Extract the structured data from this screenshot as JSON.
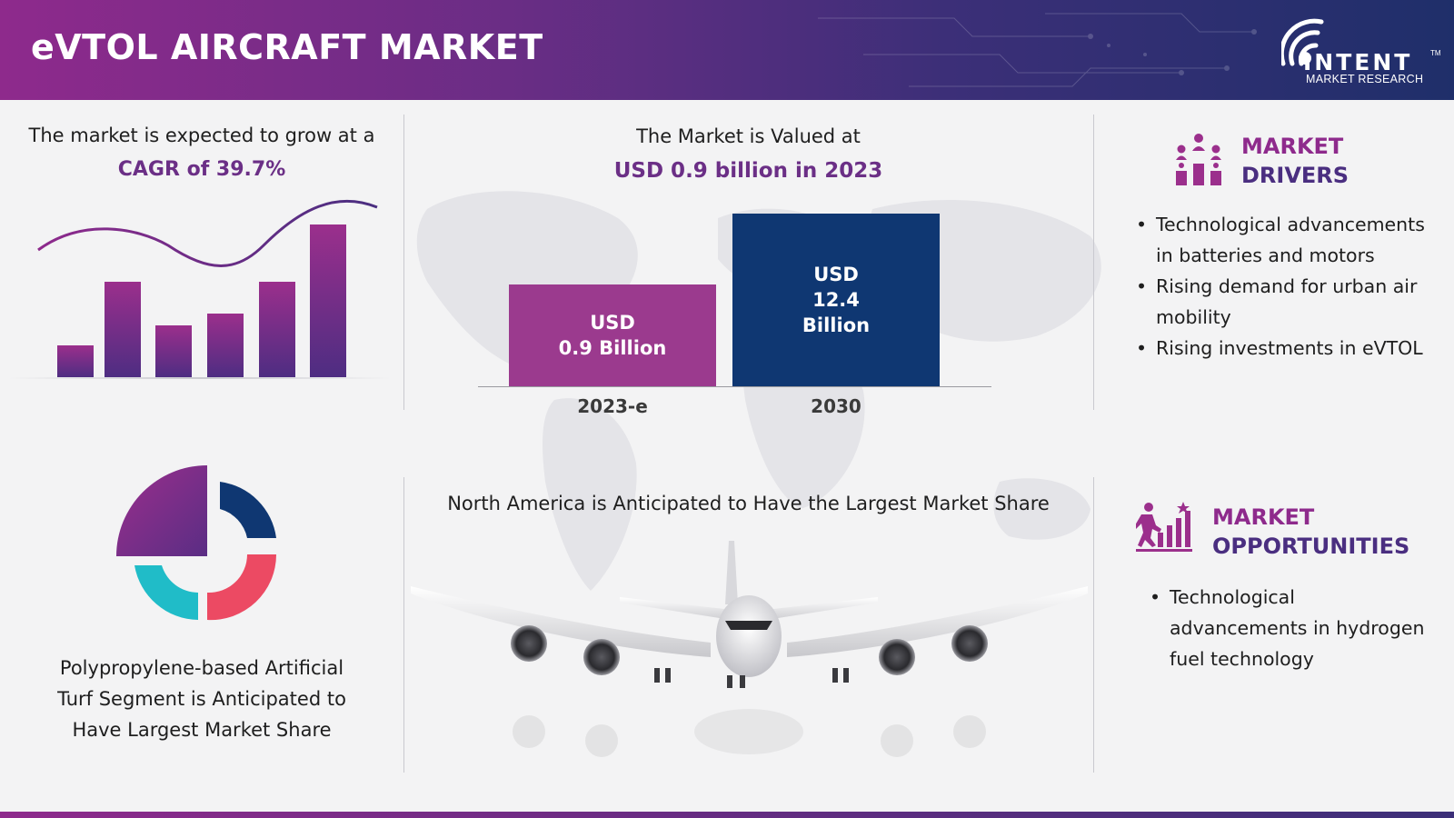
{
  "header": {
    "title": "eVTOL AIRCRAFT MARKET",
    "logo_name": "INTENT",
    "logo_tm": "TM",
    "logo_sub": "MARKET RESEARCH"
  },
  "cagr": {
    "text": "The market is expected to grow at a",
    "value": "CAGR of 39.7%"
  },
  "valuation": {
    "text": "The Market is Valued at",
    "value": "USD 0.9 billion in 2023"
  },
  "chart_data": {
    "type": "bar",
    "categories": [
      "2023-e",
      "2030"
    ],
    "values": [
      0.9,
      12.4
    ],
    "unit": "USD Billion",
    "bar_labels": [
      [
        "USD",
        "0.9 Billion"
      ],
      [
        "USD",
        "12.4",
        "Billion"
      ]
    ],
    "colors": [
      "#9b3a8e",
      "#0f3772"
    ],
    "ylim": [
      0,
      12.4
    ]
  },
  "drivers": {
    "heading_line1": "MARKET",
    "heading_line2": "DRIVERS",
    "items": [
      "Technological advancements in batteries and motors",
      "Rising demand for urban air mobility",
      "Rising investments in eVTOL"
    ]
  },
  "segment": {
    "text_lines": [
      "Polypropylene-based Artificial",
      "Turf Segment is Anticipated to",
      "Have Largest Market Share"
    ]
  },
  "region": {
    "text": "North America is Anticipated to Have the Largest Market Share"
  },
  "opportunities": {
    "heading_line1": "MARKET",
    "heading_line2": "OPPORTUNITIES",
    "items": [
      "Technological advancements in hydrogen fuel technology"
    ]
  },
  "colors": {
    "purple": "#8e2a8c",
    "navy": "#0f3772",
    "pink": "#ec4a63",
    "teal": "#20bcc8",
    "dark_violet": "#4a2e80"
  }
}
